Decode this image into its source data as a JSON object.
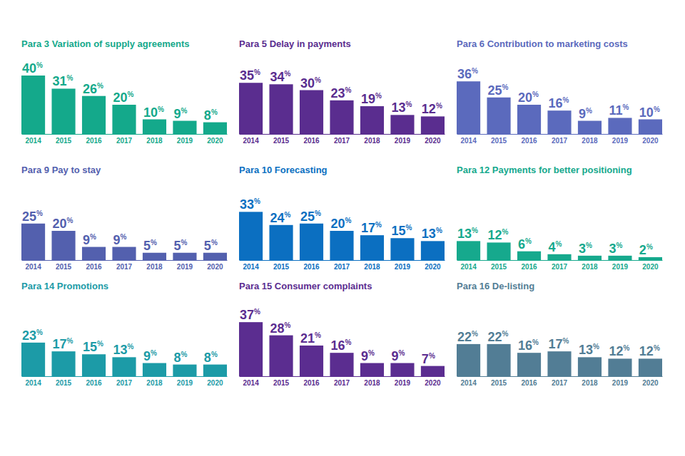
{
  "chart_data": [
    {
      "type": "bar",
      "title": "Para 3 Variation of supply agreements",
      "categories": [
        "2014",
        "2015",
        "2016",
        "2017",
        "2018",
        "2019",
        "2020"
      ],
      "values": [
        40,
        31,
        26,
        20,
        10,
        9,
        8
      ],
      "value_labels": [
        "40%",
        "31%",
        "26%",
        "20%",
        "10%",
        "9%",
        "8%"
      ],
      "color": "#14a98b",
      "ylim": [
        0,
        40
      ],
      "data_labels": true,
      "tick_labels": "x"
    },
    {
      "type": "bar",
      "title": "Para 5 Delay in payments",
      "categories": [
        "2014",
        "2015",
        "2016",
        "2017",
        "2018",
        "2019",
        "2020"
      ],
      "values": [
        35,
        34,
        30,
        23,
        19,
        13,
        12
      ],
      "value_labels": [
        "35%",
        "34%",
        "30%",
        "23%",
        "19%",
        "13%",
        "12%"
      ],
      "color": "#5a2d8f",
      "ylim": [
        0,
        40
      ],
      "data_labels": true,
      "tick_labels": "x"
    },
    {
      "type": "bar",
      "title": "Para 6 Contribution to marketing costs",
      "categories": [
        "2014",
        "2015",
        "2016",
        "2017",
        "2018",
        "2019",
        "2020"
      ],
      "values": [
        36,
        25,
        20,
        16,
        9,
        11,
        10
      ],
      "value_labels": [
        "36%",
        "25%",
        "20%",
        "16%",
        "9%",
        "11%",
        "10%"
      ],
      "color": "#5b6abd",
      "ylim": [
        0,
        40
      ],
      "data_labels": true,
      "tick_labels": "x"
    },
    {
      "type": "bar",
      "title": "Para 9 Pay to stay",
      "categories": [
        "2014",
        "2015",
        "2016",
        "2017",
        "2018",
        "2019",
        "2020"
      ],
      "values": [
        25,
        20,
        9,
        9,
        5,
        5,
        5
      ],
      "value_labels": [
        "25%",
        "20%",
        "9%",
        "9%",
        "5%",
        "5%",
        "5%"
      ],
      "color": "#5360ae",
      "ylim": [
        0,
        40
      ],
      "data_labels": true,
      "tick_labels": "x"
    },
    {
      "type": "bar",
      "title": "Para 10 Forecasting",
      "categories": [
        "2014",
        "2015",
        "2016",
        "2017",
        "2018",
        "2019",
        "2020"
      ],
      "values": [
        33,
        24,
        25,
        20,
        17,
        15,
        13
      ],
      "value_labels": [
        "33%",
        "24%",
        "25%",
        "20%",
        "17%",
        "15%",
        "13%"
      ],
      "color": "#0b6fc1",
      "ylim": [
        0,
        40
      ],
      "data_labels": true,
      "tick_labels": "x"
    },
    {
      "type": "bar",
      "title": "Para 12 Payments for better positioning",
      "categories": [
        "2014",
        "2015",
        "2016",
        "2017",
        "2018",
        "2019",
        "2020"
      ],
      "values": [
        13,
        12,
        6,
        4,
        3,
        3,
        2
      ],
      "value_labels": [
        "13%",
        "12%",
        "6%",
        "4%",
        "3%",
        "3%",
        "2%"
      ],
      "color": "#16a98d",
      "ylim": [
        0,
        40
      ],
      "data_labels": true,
      "tick_labels": "x"
    },
    {
      "type": "bar",
      "title": "Para 14 Promotions",
      "categories": [
        "2014",
        "2015",
        "2016",
        "2017",
        "2018",
        "2019",
        "2020"
      ],
      "values": [
        23,
        17,
        15,
        13,
        9,
        8,
        8
      ],
      "value_labels": [
        "23%",
        "17%",
        "15%",
        "13%",
        "9%",
        "8%",
        "8%"
      ],
      "color": "#1c9ba7",
      "ylim": [
        0,
        40
      ],
      "data_labels": true,
      "tick_labels": "x"
    },
    {
      "type": "bar",
      "title": "Para 15 Consumer complaints",
      "categories": [
        "2014",
        "2015",
        "2016",
        "2017",
        "2018",
        "2019",
        "2020"
      ],
      "values": [
        37,
        28,
        21,
        16,
        9,
        9,
        7
      ],
      "value_labels": [
        "37%",
        "28%",
        "21%",
        "16%",
        "9%",
        "9%",
        "7%"
      ],
      "color": "#5b2d90",
      "ylim": [
        0,
        40
      ],
      "data_labels": true,
      "tick_labels": "x"
    },
    {
      "type": "bar",
      "title": "Para 16 De-listing",
      "categories": [
        "2014",
        "2015",
        "2016",
        "2017",
        "2018",
        "2019",
        "2020"
      ],
      "values": [
        22,
        22,
        16,
        17,
        13,
        12,
        12
      ],
      "value_labels": [
        "22%",
        "22%",
        "16%",
        "17%",
        "13%",
        "12%",
        "12%"
      ],
      "color": "#527d95",
      "ylim": [
        0,
        40
      ],
      "data_labels": true,
      "tick_labels": "x"
    }
  ]
}
